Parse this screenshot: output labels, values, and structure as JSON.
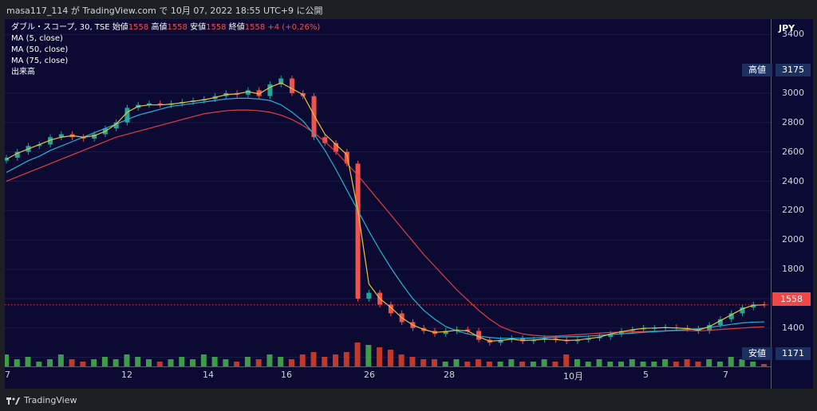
{
  "header": {
    "text": "masa117_114 が TradingView.com で 10月 07, 2022 18:55 UTC+9 に公開"
  },
  "legend": {
    "title": "ダブル・スコープ, 30, TSE",
    "open_label": "始値",
    "open": "1558",
    "high_label": "高値",
    "high": "1558",
    "low_label": "安値",
    "low": "1558",
    "close_label": "終値",
    "close": "1558",
    "change": "+4 (+0.26%)",
    "ma5": "MA (5, close)",
    "ma50": "MA (50, close)",
    "ma75": "MA (75, close)",
    "volume": "出来高"
  },
  "price_axis": {
    "currency": "JPY",
    "ticks": [
      "3400",
      "3000",
      "2800",
      "2600",
      "2400",
      "2200",
      "2000",
      "1800",
      "1600",
      "1400",
      "1200"
    ],
    "high_tag": {
      "label": "高値",
      "value": "3175"
    },
    "low_tag": {
      "label": "安値",
      "value": "1171"
    },
    "current": "1558"
  },
  "time_axis": {
    "ticks": [
      "7",
      "12",
      "14",
      "16",
      "26",
      "28",
      "10月",
      "5",
      "7"
    ]
  },
  "branding": {
    "label": "TradingView"
  },
  "colors": {
    "up": "#26a69a",
    "down": "#ef5350",
    "ma5": "#e8c33a",
    "ma50": "#24b3d2",
    "ma75": "#e04040",
    "volume_up": "#3d9b4b",
    "volume_down": "#c0392b"
  },
  "chart_data": {
    "type": "candlestick",
    "ylim": [
      1171,
      3450
    ],
    "y_ticks": [
      1200,
      1400,
      1600,
      1800,
      2000,
      2200,
      2400,
      2600,
      2800,
      3000,
      3400
    ],
    "close_path": [
      2560,
      2600,
      2640,
      2650,
      2700,
      2720,
      2700,
      2690,
      2720,
      2760,
      2800,
      2900,
      2920,
      2930,
      2920,
      2930,
      2940,
      2950,
      2960,
      2980,
      3000,
      2990,
      3020,
      2980,
      3060,
      3100,
      3000,
      2980,
      2700,
      2660,
      2600,
      2520,
      1600,
      1640,
      1560,
      1500,
      1440,
      1400,
      1380,
      1360,
      1380,
      1390,
      1380,
      1320,
      1300,
      1320,
      1330,
      1310,
      1320,
      1330,
      1320,
      1310,
      1320,
      1330,
      1340,
      1360,
      1380,
      1390,
      1400,
      1400,
      1405,
      1400,
      1395,
      1380,
      1420,
      1460,
      1500,
      1540,
      1560,
      1558
    ],
    "ma5": [
      2550,
      2590,
      2620,
      2650,
      2680,
      2700,
      2710,
      2700,
      2710,
      2740,
      2790,
      2870,
      2910,
      2920,
      2920,
      2925,
      2935,
      2945,
      2955,
      2970,
      2990,
      2995,
      3010,
      2995,
      3040,
      3070,
      3030,
      2990,
      2850,
      2720,
      2650,
      2580,
      2200,
      1700,
      1600,
      1540,
      1470,
      1420,
      1390,
      1370,
      1375,
      1385,
      1380,
      1340,
      1310,
      1315,
      1325,
      1315,
      1318,
      1325,
      1322,
      1315,
      1318,
      1328,
      1338,
      1360,
      1375,
      1388,
      1398,
      1400,
      1403,
      1400,
      1396,
      1385,
      1410,
      1450,
      1490,
      1530,
      1555,
      1558
    ],
    "ma50": [
      2460,
      2500,
      2540,
      2570,
      2610,
      2640,
      2670,
      2700,
      2730,
      2760,
      2790,
      2820,
      2850,
      2870,
      2890,
      2910,
      2920,
      2930,
      2940,
      2950,
      2960,
      2965,
      2965,
      2960,
      2950,
      2920,
      2870,
      2810,
      2720,
      2610,
      2480,
      2340,
      2200,
      2060,
      1930,
      1810,
      1700,
      1600,
      1520,
      1460,
      1410,
      1380,
      1360,
      1345,
      1335,
      1330,
      1330,
      1330,
      1332,
      1335,
      1338,
      1340,
      1342,
      1345,
      1350,
      1355,
      1360,
      1365,
      1370,
      1375,
      1380,
      1385,
      1390,
      1395,
      1405,
      1415,
      1425,
      1435,
      1440,
      1442
    ],
    "ma75": [
      2400,
      2430,
      2460,
      2490,
      2520,
      2550,
      2580,
      2610,
      2640,
      2670,
      2700,
      2720,
      2740,
      2760,
      2780,
      2800,
      2820,
      2840,
      2860,
      2870,
      2880,
      2885,
      2885,
      2880,
      2870,
      2850,
      2820,
      2780,
      2730,
      2670,
      2600,
      2520,
      2440,
      2350,
      2260,
      2170,
      2080,
      1990,
      1900,
      1820,
      1740,
      1660,
      1590,
      1520,
      1460,
      1410,
      1380,
      1360,
      1350,
      1345,
      1345,
      1350,
      1355,
      1360,
      1365,
      1370,
      1372,
      1374,
      1376,
      1378,
      1380,
      1382,
      1383,
      1380,
      1385,
      1390,
      1395,
      1400,
      1405,
      1408
    ],
    "volume_relative": [
      0.5,
      0.3,
      0.4,
      0.2,
      0.3,
      0.5,
      0.3,
      0.2,
      0.3,
      0.4,
      0.3,
      0.5,
      0.4,
      0.3,
      0.2,
      0.3,
      0.4,
      0.3,
      0.5,
      0.4,
      0.3,
      0.2,
      0.4,
      0.3,
      0.5,
      0.4,
      0.3,
      0.5,
      0.6,
      0.4,
      0.5,
      0.6,
      1.0,
      0.9,
      0.8,
      0.7,
      0.5,
      0.4,
      0.3,
      0.3,
      0.2,
      0.3,
      0.2,
      0.3,
      0.2,
      0.2,
      0.3,
      0.2,
      0.2,
      0.3,
      0.2,
      0.5,
      0.3,
      0.2,
      0.3,
      0.2,
      0.2,
      0.3,
      0.2,
      0.2,
      0.3,
      0.2,
      0.3,
      0.2,
      0.3,
      0.2,
      0.4,
      0.3,
      0.2,
      0.1
    ]
  }
}
